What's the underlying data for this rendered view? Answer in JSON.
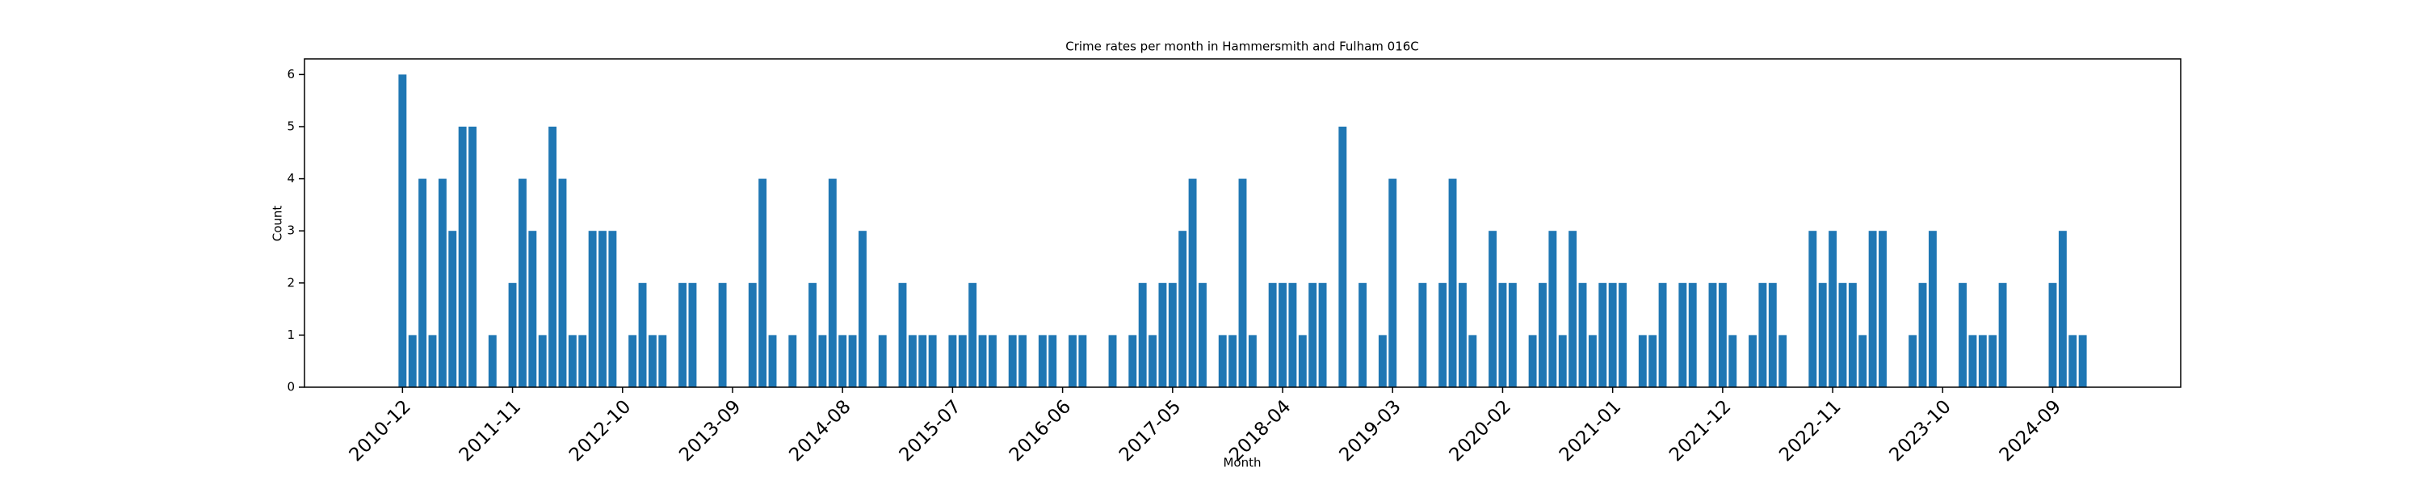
{
  "chart_data": {
    "type": "bar",
    "title": "Crime rates per month in Hammersmith and Fulham 016C",
    "x_label": "Month",
    "y_label": "Count",
    "color": "#1f77b4",
    "categories": [
      "2010-12",
      null,
      null,
      null,
      null,
      null,
      null,
      null,
      null,
      null,
      null,
      "2011-11",
      null,
      null,
      null,
      null,
      null,
      null,
      null,
      null,
      null,
      null,
      "2012-10",
      null,
      null,
      null,
      null,
      null,
      null,
      null,
      null,
      null,
      null,
      "2013-09",
      null,
      null,
      null,
      null,
      null,
      null,
      null,
      null,
      null,
      null,
      "2014-08",
      null,
      null,
      null,
      null,
      null,
      null,
      null,
      null,
      null,
      null,
      "2015-07",
      null,
      null,
      null,
      null,
      null,
      null,
      null,
      null,
      null,
      null,
      "2016-06",
      null,
      null,
      null,
      null,
      null,
      null,
      null,
      null,
      null,
      null,
      "2017-05",
      null,
      null,
      null,
      null,
      null,
      null,
      null,
      null,
      null,
      null,
      "2018-04",
      null,
      null,
      null,
      null,
      null,
      null,
      null,
      null,
      null,
      null,
      "2019-03",
      null,
      null,
      null,
      null,
      null,
      null,
      null,
      null,
      null,
      null,
      "2020-02",
      null,
      null,
      null,
      null,
      null,
      null,
      null,
      null,
      null,
      null,
      "2021-01",
      null,
      null,
      null,
      null,
      null,
      null,
      null,
      null,
      null,
      null,
      "2021-12",
      null,
      null,
      null,
      null,
      null,
      null,
      null,
      null,
      null,
      null,
      "2022-11",
      null,
      null,
      null,
      null,
      null,
      null,
      null,
      null,
      null,
      null,
      "2023-10",
      null,
      null,
      null,
      null,
      null,
      null,
      null,
      null,
      null,
      null,
      "2024-09",
      null,
      null,
      null
    ],
    "values": [
      6,
      1,
      4,
      1,
      4,
      3,
      5,
      5,
      0,
      1,
      0,
      2,
      4,
      3,
      1,
      5,
      4,
      1,
      1,
      3,
      3,
      3,
      0,
      1,
      2,
      1,
      1,
      0,
      2,
      2,
      0,
      0,
      2,
      0,
      0,
      2,
      4,
      1,
      0,
      1,
      0,
      2,
      1,
      4,
      1,
      1,
      3,
      0,
      1,
      0,
      2,
      1,
      1,
      1,
      0,
      1,
      1,
      2,
      1,
      1,
      0,
      1,
      1,
      0,
      1,
      1,
      0,
      1,
      1,
      0,
      0,
      1,
      0,
      1,
      2,
      1,
      2,
      2,
      3,
      4,
      2,
      0,
      1,
      1,
      4,
      1,
      0,
      2,
      2,
      2,
      1,
      2,
      2,
      0,
      5,
      0,
      2,
      0,
      1,
      4,
      0,
      0,
      2,
      0,
      2,
      4,
      2,
      1,
      0,
      3,
      2,
      2,
      0,
      1,
      2,
      3,
      1,
      3,
      2,
      1,
      2,
      2,
      2,
      0,
      1,
      1,
      2,
      0,
      2,
      2,
      0,
      2,
      2,
      1,
      0,
      1,
      2,
      2,
      1,
      0,
      0,
      3,
      2,
      3,
      2,
      2,
      1,
      3,
      3,
      0,
      0,
      1,
      2,
      3,
      0,
      0,
      2,
      1,
      1,
      1,
      2,
      0,
      0,
      0,
      0,
      2,
      3,
      1,
      1
    ],
    "ylim": [
      0,
      6.3
    ],
    "yticks": [
      0,
      1,
      2,
      3,
      4,
      5,
      6
    ]
  }
}
